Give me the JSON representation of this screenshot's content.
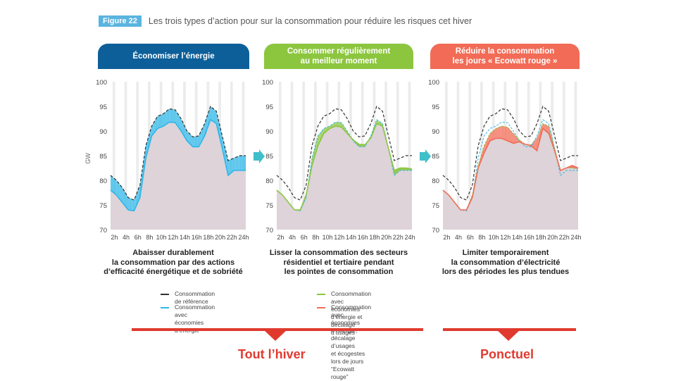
{
  "figure": {
    "badge": "Figure 22",
    "title": "Les trois types d’action pour sur la consommation pour réduire les risques cet hiver"
  },
  "panels": [
    {
      "title": "Économiser l’énergie",
      "color": "#0d5f99",
      "caption": "Abaisser durablement\nla consommation par des actions\nd’efficacité énergétique et de sobriété"
    },
    {
      "title": "Consommer régulièrement\nau meilleur moment",
      "color": "#8cc63f",
      "caption": "Lisser la consommation des secteurs\nrésidentiel et tertiaire pendant\nles pointes de consommation"
    },
    {
      "title": "Réduire la consommation\nles jours « Ecowatt rouge »",
      "color": "#f26b56",
      "caption": "Limiter temporairement\nla consommation d’électricité\nlors des périodes les plus tendues"
    }
  ],
  "legend": {
    "reference": "Consommation de référence",
    "savings": "Consommation avec économies d’énergie",
    "shift": "Consommation avec économies d’énergie et décalage d’usages",
    "ecowatt": "Consommation avec économies d’énergie, décalage d’usages\net écogestes lors de jours “Ecowatt rouge”"
  },
  "bottom": {
    "left_label": "Tout l’hiver",
    "right_label": "Ponctuel"
  },
  "colors": {
    "reference": "#333333",
    "savings": "#2eb6e8",
    "shift": "#8cc63f",
    "ecowatt": "#f26b56",
    "area": "#ddd3d8",
    "arrow": "#3fbfca"
  },
  "chart_data": [
    {
      "type": "area",
      "ylabel": "GW",
      "ylim": [
        70,
        100
      ],
      "yticks": [
        70,
        75,
        80,
        85,
        90,
        95,
        100
      ],
      "x": [
        1,
        2,
        3,
        4,
        5,
        6,
        7,
        8,
        9,
        10,
        11,
        12,
        13,
        14,
        15,
        16,
        17,
        18,
        19,
        20,
        21,
        22,
        23,
        24
      ],
      "xtick_labels": [
        "2h",
        "4h",
        "6h",
        "8h",
        "10h",
        "12h",
        "14h",
        "16h",
        "18h",
        "20h",
        "22h",
        "24h"
      ],
      "series": [
        {
          "name": "Consommation de référence",
          "values": [
            81,
            80,
            78.5,
            76.5,
            76,
            79,
            87,
            91,
            93,
            93.5,
            94.5,
            94.3,
            92.5,
            90,
            88.8,
            89,
            91.5,
            95,
            94,
            89,
            84,
            84.5,
            85,
            85
          ]
        },
        {
          "name": "Consommation avec économies d’énergie",
          "values": [
            78,
            77,
            75.5,
            74,
            73.8,
            76.5,
            84.5,
            89,
            90.5,
            91,
            91.8,
            91.7,
            90,
            88,
            86.8,
            86.8,
            89,
            92.3,
            91.5,
            86.5,
            81,
            82,
            82,
            82
          ]
        }
      ]
    },
    {
      "type": "area",
      "ylabel": "",
      "ylim": [
        70,
        100
      ],
      "yticks": [
        70,
        75,
        80,
        85,
        90,
        95,
        100
      ],
      "x": [
        1,
        2,
        3,
        4,
        5,
        6,
        7,
        8,
        9,
        10,
        11,
        12,
        13,
        14,
        15,
        16,
        17,
        18,
        19,
        20,
        21,
        22,
        23,
        24
      ],
      "xtick_labels": [
        "2h",
        "4h",
        "6h",
        "8h",
        "10h",
        "12h",
        "14h",
        "16h",
        "18h",
        "20h",
        "22h",
        "24h"
      ],
      "series": [
        {
          "name": "Consommation de référence",
          "values": [
            81,
            80,
            78.5,
            76.5,
            76,
            79,
            87,
            91,
            93,
            93.5,
            94.5,
            94.3,
            92.5,
            90,
            88.8,
            89,
            91.5,
            95,
            94,
            89,
            84,
            84.5,
            85,
            85
          ]
        },
        {
          "name": "Consommation avec économies d’énergie",
          "values": [
            78,
            77,
            75.5,
            74,
            73.8,
            76.5,
            84.5,
            89,
            90.5,
            91,
            91.8,
            91.7,
            90,
            88,
            86.8,
            86.8,
            89,
            92.3,
            91.5,
            86.5,
            81,
            82,
            82,
            82
          ]
        },
        {
          "name": "Consommation avec économies d’énergie et décalage d’usages",
          "values": [
            78,
            77,
            75.5,
            74,
            74,
            77,
            83,
            87,
            89.5,
            90.5,
            91,
            90.8,
            89.5,
            88.2,
            87.3,
            87.2,
            88.6,
            91.5,
            91,
            86.5,
            82,
            82.5,
            82.5,
            82.3
          ]
        }
      ]
    },
    {
      "type": "area",
      "ylabel": "",
      "ylim": [
        70,
        100
      ],
      "yticks": [
        70,
        75,
        80,
        85,
        90,
        95,
        100
      ],
      "x": [
        1,
        2,
        3,
        4,
        5,
        6,
        7,
        8,
        9,
        10,
        11,
        12,
        13,
        14,
        15,
        16,
        17,
        18,
        19,
        20,
        21,
        22,
        23,
        24
      ],
      "xtick_labels": [
        "2h",
        "4h",
        "6h",
        "8h",
        "10h",
        "12h",
        "14h",
        "16h",
        "18h",
        "20h",
        "22h",
        "24h"
      ],
      "series": [
        {
          "name": "Consommation de référence",
          "values": [
            81,
            80,
            78.5,
            76.5,
            76,
            79,
            87,
            91,
            93,
            93.5,
            94.5,
            94.3,
            92.5,
            90,
            88.8,
            89,
            91.5,
            95,
            94,
            89,
            84,
            84.5,
            85,
            85
          ]
        },
        {
          "name": "Consommation avec économies d’énergie",
          "values": [
            78,
            77,
            75.5,
            74,
            73.8,
            76.5,
            84.5,
            89,
            90.5,
            91,
            91.8,
            91.7,
            90,
            88,
            86.8,
            86.8,
            89,
            92.3,
            91.5,
            86.5,
            81,
            82,
            82,
            82
          ]
        },
        {
          "name": "Consommation avec économies d’énergie et décalage d’usages",
          "values": [
            78,
            77,
            75.5,
            74,
            74,
            77,
            83,
            87,
            89.5,
            90.5,
            91,
            90.8,
            89.5,
            88.2,
            87.3,
            87.2,
            88.6,
            91.5,
            91,
            86.5,
            82,
            82.5,
            82.5,
            82.3
          ]
        },
        {
          "name": "Consommation avec économies d’énergie, décalage d’usages et écogestes lors de jours “Ecowatt rouge”",
          "values": [
            78,
            77,
            75.5,
            74,
            74,
            76.5,
            82.5,
            85.5,
            88,
            88.5,
            88.5,
            88,
            87.5,
            87.8,
            87.3,
            87,
            86,
            90.5,
            89.5,
            86,
            82,
            82.5,
            83,
            82.5
          ]
        }
      ]
    }
  ]
}
